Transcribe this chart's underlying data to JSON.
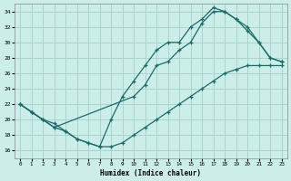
{
  "xlabel": "Humidex (Indice chaleur)",
  "bg_color": "#cceee8",
  "grid_color": "#aad4ce",
  "line_color": "#1a6b6b",
  "xlim": [
    -0.5,
    23.5
  ],
  "ylim": [
    15,
    35
  ],
  "xticks": [
    0,
    1,
    2,
    3,
    4,
    5,
    6,
    7,
    8,
    9,
    10,
    11,
    12,
    13,
    14,
    15,
    16,
    17,
    18,
    19,
    20,
    21,
    22,
    23
  ],
  "yticks": [
    16,
    18,
    20,
    22,
    24,
    26,
    28,
    30,
    32,
    34
  ],
  "line1_x": [
    0,
    1,
    2,
    3,
    4,
    5,
    6,
    7,
    8,
    9,
    10,
    11,
    12,
    13,
    14,
    15,
    16,
    17,
    18,
    19,
    20,
    21,
    22,
    23
  ],
  "line1_y": [
    22,
    21,
    20,
    19.5,
    18.5,
    17.5,
    17,
    16.5,
    16.5,
    17,
    18,
    19,
    20,
    21,
    22,
    23,
    24,
    25,
    26,
    26.5,
    27,
    27,
    27,
    27
  ],
  "line2_x": [
    0,
    1,
    2,
    3,
    4,
    5,
    6,
    7,
    8,
    9,
    10,
    11,
    12,
    13,
    14,
    15,
    16,
    17,
    18,
    19,
    20,
    21,
    22,
    23
  ],
  "line2_y": [
    22,
    21,
    20,
    19,
    18.5,
    17.5,
    17,
    16.5,
    20,
    23,
    25,
    27,
    29,
    30,
    30,
    32,
    33,
    34.5,
    34,
    33,
    32,
    30,
    28,
    27.5
  ],
  "line3_x": [
    0,
    1,
    2,
    3,
    10,
    11,
    12,
    13,
    14,
    15,
    16,
    17,
    18,
    19,
    20,
    21,
    22,
    23
  ],
  "line3_y": [
    22,
    21,
    20,
    19,
    23,
    24.5,
    27,
    27.5,
    29,
    30,
    32.5,
    34,
    34,
    33,
    31.5,
    30,
    28,
    27.5
  ]
}
